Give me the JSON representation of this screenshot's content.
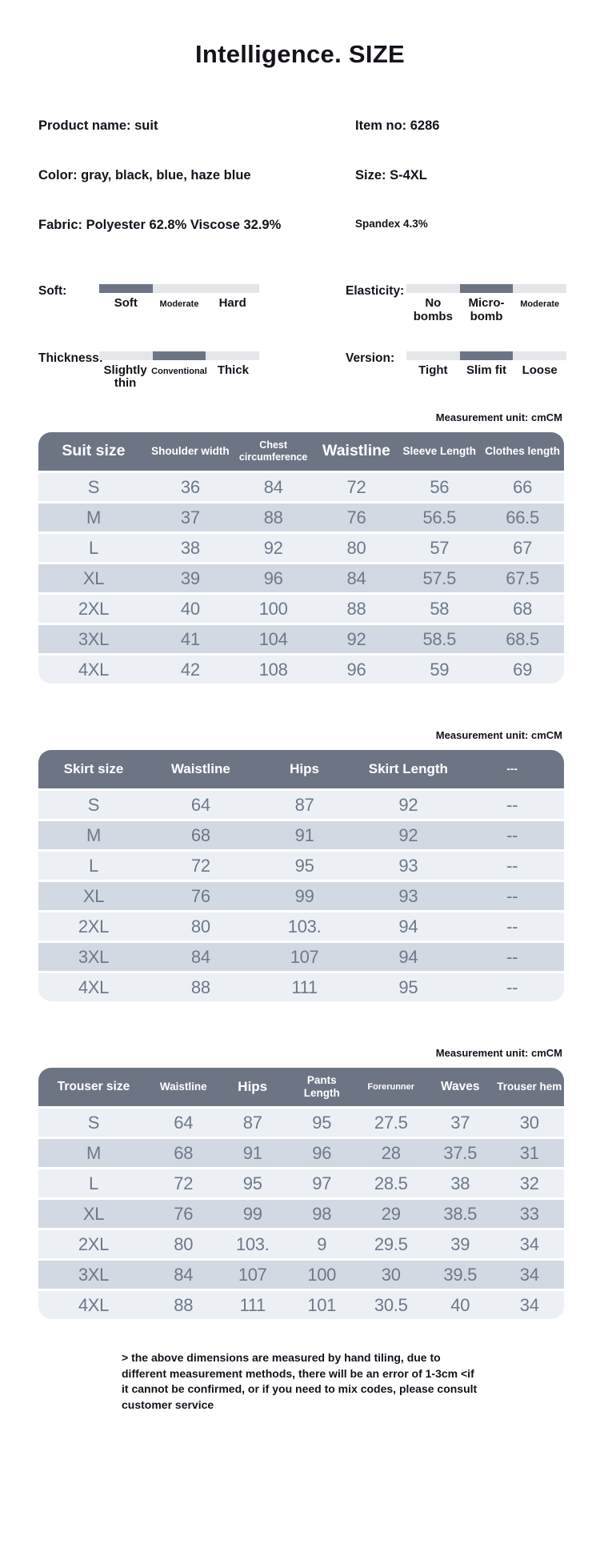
{
  "page": {
    "title": "Intelligence. SIZE"
  },
  "product": {
    "rows": [
      {
        "left": "Product name: suit",
        "right": "Item no: 6286"
      },
      {
        "left": "Color: gray, black, blue, haze blue",
        "right": "Size: S-4XL"
      },
      {
        "left": "Fabric: Polyester 62.8% Viscose 32.9%",
        "right": "Spandex 4.3%"
      }
    ]
  },
  "attributes": [
    {
      "label": "Soft:",
      "selected_index": 0,
      "options": [
        {
          "label": "Soft",
          "size": "big"
        },
        {
          "label": "Moderate",
          "size": "small"
        },
        {
          "label": "Hard",
          "size": "big"
        }
      ]
    },
    {
      "label": "Elasticity:",
      "selected_index": 1,
      "options": [
        {
          "label": "No bombs",
          "size": "big"
        },
        {
          "label": "Micro-bomb",
          "size": "big"
        },
        {
          "label": "Moderate",
          "size": "small"
        }
      ]
    },
    {
      "label": "Thickness:",
      "selected_index": 1,
      "options": [
        {
          "label": "Slightly thin",
          "size": "big"
        },
        {
          "label": "Conventional",
          "size": "small"
        },
        {
          "label": "Thick",
          "size": "big"
        }
      ]
    },
    {
      "label": "Version:",
      "selected_index": 1,
      "options": [
        {
          "label": "Tight",
          "size": "big"
        },
        {
          "label": "Slim fit",
          "size": "big"
        },
        {
          "label": "Loose",
          "size": "big"
        }
      ]
    }
  ],
  "tables": [
    {
      "id": "suit-size",
      "unit_note": "Measurement unit: cmCM",
      "columns": [
        {
          "label": "Suit size",
          "size": "xl"
        },
        {
          "label": "Shoulder width",
          "size": "md"
        },
        {
          "label": "Chest circumference",
          "size": "sm"
        },
        {
          "label": "Waistline",
          "size": "xl"
        },
        {
          "label": "Sleeve Length",
          "size": "md"
        },
        {
          "label": "Clothes length",
          "size": "md"
        }
      ],
      "rows": [
        [
          "S",
          "36",
          "84",
          "72",
          "56",
          "66"
        ],
        [
          "M",
          "37",
          "88",
          "76",
          "56.5",
          "66.5"
        ],
        [
          "L",
          "38",
          "92",
          "80",
          "57",
          "67"
        ],
        [
          "XL",
          "39",
          "96",
          "84",
          "57.5",
          "67.5"
        ],
        [
          "2XL",
          "40",
          "100",
          "88",
          "58",
          "68"
        ],
        [
          "3XL",
          "41",
          "104",
          "92",
          "58.5",
          "68.5"
        ],
        [
          "4XL",
          "42",
          "108",
          "96",
          "59",
          "69"
        ]
      ]
    },
    {
      "id": "skirt-size",
      "unit_note": "Measurement unit: cmCM",
      "columns": [
        {
          "label": "Skirt size",
          "size": "lg"
        },
        {
          "label": "Waistline",
          "size": "lg"
        },
        {
          "label": "Hips",
          "size": "lg"
        },
        {
          "label": "Skirt Length",
          "size": "lg"
        },
        {
          "label": "---",
          "size": "md"
        }
      ],
      "rows": [
        [
          "S",
          "64",
          "87",
          "92",
          "--"
        ],
        [
          "M",
          "68",
          "91",
          "92",
          "--"
        ],
        [
          "L",
          "72",
          "95",
          "93",
          "--"
        ],
        [
          "XL",
          "76",
          "99",
          "93",
          "--"
        ],
        [
          "2XL",
          "80",
          "103.",
          "94",
          "--"
        ],
        [
          "3XL",
          "84",
          "107",
          "94",
          "--"
        ],
        [
          "4XL",
          "88",
          "111",
          "95",
          "--"
        ]
      ]
    },
    {
      "id": "trouser-size",
      "unit_note": "Measurement unit: cmCM",
      "columns": [
        {
          "label": "Trouser size",
          "size": "ml"
        },
        {
          "label": "Waistline",
          "size": "md"
        },
        {
          "label": "Hips",
          "size": "lg"
        },
        {
          "label": "Pants Length",
          "size": "md"
        },
        {
          "label": "Forerunner",
          "size": "xs"
        },
        {
          "label": "Waves",
          "size": "ml"
        },
        {
          "label": "Trouser hem",
          "size": "md"
        }
      ],
      "rows": [
        [
          "S",
          "64",
          "87",
          "95",
          "27.5",
          "37",
          "30"
        ],
        [
          "M",
          "68",
          "91",
          "96",
          "28",
          "37.5",
          "31"
        ],
        [
          "L",
          "72",
          "95",
          "97",
          "28.5",
          "38",
          "32"
        ],
        [
          "XL",
          "76",
          "99",
          "98",
          "29",
          "38.5",
          "33"
        ],
        [
          "2XL",
          "80",
          "103.",
          "9",
          "29.5",
          "39",
          "34"
        ],
        [
          "3XL",
          "84",
          "107",
          "100",
          "30",
          "39.5",
          "34"
        ],
        [
          "4XL",
          "88",
          "111",
          "101",
          "30.5",
          "40",
          "34"
        ]
      ]
    }
  ],
  "footer": {
    "note": "> the above dimensions are measured by hand tiling, due to different measurement methods, there will be an error of 1-3cm <if it cannot be confirmed, or if you need to mix codes, please consult customer service"
  },
  "colors": {
    "accent_slate": "#6d7585",
    "row_light": "#ecf0f5",
    "row_dark": "#d3d9e3",
    "track_gray": "#e4e6ea",
    "value_text": "#6e7888"
  }
}
